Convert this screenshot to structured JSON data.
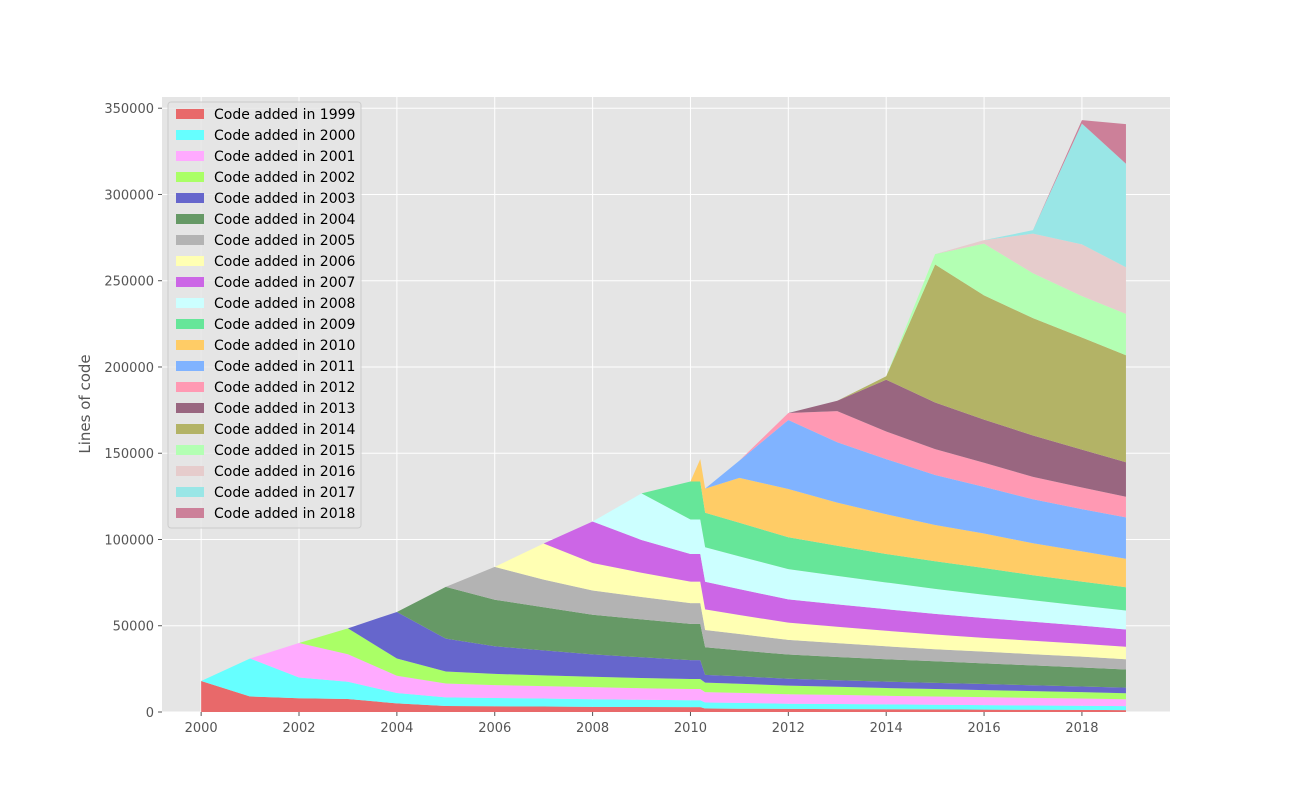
{
  "chart_data": {
    "type": "area",
    "stacked": true,
    "title": "",
    "xlabel": "",
    "ylabel": "Lines of code",
    "xlim": [
      1999.2,
      2019.8
    ],
    "ylim": [
      0,
      350000
    ],
    "x_ticks": [
      2000,
      2002,
      2004,
      2006,
      2008,
      2010,
      2012,
      2014,
      2016,
      2018
    ],
    "x_tick_labels": [
      "2000",
      "2002",
      "2004",
      "2006",
      "2008",
      "2010",
      "2012",
      "2014",
      "2016",
      "2018"
    ],
    "y_ticks": [
      0,
      50000,
      100000,
      150000,
      200000,
      250000,
      300000,
      350000
    ],
    "y_tick_labels": [
      "0",
      "50000",
      "100000",
      "150000",
      "200000",
      "250000",
      "300000",
      "350000"
    ],
    "grid": true,
    "legend_position": "upper-left",
    "x": [
      2000,
      2001,
      2002,
      2003,
      2004,
      2005,
      2006,
      2007,
      2008,
      2009,
      2010,
      2010.2,
      2010.3,
      2011,
      2012,
      2013,
      2014,
      2015,
      2016,
      2017,
      2018,
      2018.9
    ],
    "series": [
      {
        "name": "Code added in 1999",
        "color": "#e8696a",
        "values": [
          18000,
          9000,
          8000,
          7500,
          5000,
          3500,
          3300,
          3200,
          3000,
          2900,
          2800,
          2800,
          2000,
          1900,
          1800,
          1700,
          1600,
          1500,
          1400,
          1300,
          1200,
          1100
        ]
      },
      {
        "name": "Code added in 2000",
        "color": "#66ffff",
        "values": [
          0,
          22000,
          12000,
          10000,
          6000,
          5000,
          4800,
          4600,
          4400,
          4200,
          4000,
          4000,
          3500,
          3400,
          3000,
          2900,
          2800,
          2700,
          2600,
          2500,
          2400,
          2300
        ]
      },
      {
        "name": "Code added in 2001",
        "color": "#ffaaff",
        "values": [
          0,
          0,
          20000,
          16000,
          10000,
          8000,
          7500,
          7200,
          7000,
          6700,
          6500,
          6500,
          6000,
          5800,
          5500,
          5300,
          5000,
          4800,
          4600,
          4400,
          4200,
          4000
        ]
      },
      {
        "name": "Code added in 2002",
        "color": "#aaff66",
        "values": [
          0,
          0,
          0,
          15000,
          10000,
          7000,
          6500,
          6200,
          6000,
          5900,
          5800,
          5800,
          5500,
          5300,
          5000,
          4700,
          4500,
          4300,
          4100,
          3900,
          3700,
          3500
        ]
      },
      {
        "name": "Code added in 2003",
        "color": "#6666cc",
        "values": [
          0,
          0,
          0,
          0,
          27000,
          19000,
          16000,
          14500,
          13000,
          12000,
          11000,
          11000,
          4500,
          4300,
          4000,
          3800,
          3700,
          3600,
          3500,
          3400,
          3300,
          3200
        ]
      },
      {
        "name": "Code added in 2004",
        "color": "#669966",
        "values": [
          0,
          0,
          0,
          0,
          0,
          30000,
          27000,
          25000,
          23000,
          22000,
          21000,
          21000,
          16000,
          15000,
          14000,
          13500,
          13000,
          12500,
          12000,
          11500,
          11000,
          10500
        ]
      },
      {
        "name": "Code added in 2005",
        "color": "#b3b3b3",
        "values": [
          0,
          0,
          0,
          0,
          0,
          0,
          19000,
          16000,
          14000,
          13000,
          12000,
          12000,
          10000,
          9500,
          8500,
          8000,
          7500,
          7000,
          6800,
          6500,
          6300,
          6000
        ]
      },
      {
        "name": "Code added in 2006",
        "color": "#ffffb3",
        "values": [
          0,
          0,
          0,
          0,
          0,
          0,
          0,
          21000,
          16000,
          14000,
          12500,
          12500,
          12000,
          11000,
          10000,
          9500,
          9000,
          8500,
          8000,
          7800,
          7500,
          7200
        ]
      },
      {
        "name": "Code added in 2007",
        "color": "#cc66e6",
        "values": [
          0,
          0,
          0,
          0,
          0,
          0,
          0,
          0,
          24000,
          19000,
          16000,
          16000,
          16000,
          15000,
          13500,
          13000,
          12500,
          12000,
          11500,
          11000,
          10500,
          10000
        ]
      },
      {
        "name": "Code added in 2008",
        "color": "#ccffff",
        "values": [
          0,
          0,
          0,
          0,
          0,
          0,
          0,
          0,
          0,
          27000,
          20000,
          20000,
          20000,
          19000,
          17500,
          16500,
          15500,
          14500,
          13500,
          12500,
          11500,
          11000
        ]
      },
      {
        "name": "Code added in 2009",
        "color": "#66e699",
        "values": [
          0,
          0,
          0,
          0,
          0,
          0,
          0,
          0,
          0,
          0,
          22000,
          22000,
          20000,
          19500,
          18500,
          17500,
          16500,
          16000,
          15500,
          14500,
          14000,
          13500
        ]
      },
      {
        "name": "Code added in 2010",
        "color": "#ffcc66",
        "values": [
          0,
          0,
          0,
          0,
          0,
          0,
          0,
          0,
          0,
          0,
          0,
          13000,
          14000,
          26000,
          28000,
          25000,
          23000,
          21000,
          20000,
          18500,
          17500,
          16500
        ]
      },
      {
        "name": "Code added in 2011",
        "color": "#80b3ff",
        "values": [
          0,
          0,
          0,
          0,
          0,
          0,
          0,
          0,
          0,
          0,
          0,
          0,
          0,
          10000,
          40000,
          35000,
          32000,
          29000,
          27000,
          25500,
          24500,
          24000
        ]
      },
      {
        "name": "Code added in 2012",
        "color": "#ff99b3",
        "values": [
          0,
          0,
          0,
          0,
          0,
          0,
          0,
          0,
          0,
          0,
          0,
          0,
          0,
          0,
          4000,
          18000,
          16000,
          15000,
          14000,
          13000,
          12500,
          12000
        ]
      },
      {
        "name": "Code added in 2013",
        "color": "#996680",
        "values": [
          0,
          0,
          0,
          0,
          0,
          0,
          0,
          0,
          0,
          0,
          0,
          0,
          0,
          0,
          0,
          6000,
          30000,
          27000,
          25000,
          24000,
          22000,
          20000
        ]
      },
      {
        "name": "Code added in 2014",
        "color": "#b3b366",
        "values": [
          0,
          0,
          0,
          0,
          0,
          0,
          0,
          0,
          0,
          0,
          0,
          0,
          0,
          0,
          0,
          0,
          2000,
          80000,
          72000,
          68000,
          65000,
          62000
        ]
      },
      {
        "name": "Code added in 2015",
        "color": "#b3ffb3",
        "values": [
          0,
          0,
          0,
          0,
          0,
          0,
          0,
          0,
          0,
          0,
          0,
          0,
          0,
          0,
          0,
          0,
          0,
          6000,
          30000,
          26000,
          24000,
          24000
        ]
      },
      {
        "name": "Code added in 2016",
        "color": "#e6cccc",
        "values": [
          0,
          0,
          0,
          0,
          0,
          0,
          0,
          0,
          0,
          0,
          0,
          0,
          0,
          0,
          0,
          0,
          0,
          0,
          2000,
          23000,
          30000,
          27000
        ]
      },
      {
        "name": "Code added in 2017",
        "color": "#99e6e6",
        "values": [
          0,
          0,
          0,
          0,
          0,
          0,
          0,
          0,
          0,
          0,
          0,
          0,
          0,
          0,
          0,
          0,
          0,
          0,
          0,
          2000,
          70000,
          60000
        ]
      },
      {
        "name": "Code added in 2018",
        "color": "#cc8099",
        "values": [
          0,
          0,
          0,
          0,
          0,
          0,
          0,
          0,
          0,
          0,
          0,
          0,
          0,
          0,
          0,
          0,
          0,
          0,
          0,
          0,
          2000,
          23000
        ]
      }
    ]
  }
}
